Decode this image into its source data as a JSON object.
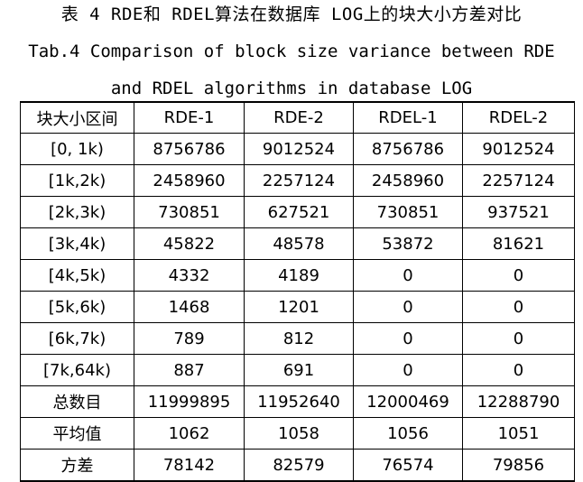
{
  "caption": {
    "cn": "表 4 RDE和 RDEL算法在数据库 LOG上的块大小方差对比",
    "en_line1": "Tab.4 Comparison of block size variance between RDE",
    "en_line2": "and RDEL algorithms in database LOG"
  },
  "table": {
    "headers": [
      "块大小区间",
      "RDE-1",
      "RDE-2",
      "RDEL-1",
      "RDEL-2"
    ],
    "rows": [
      [
        "[0, 1k)",
        "8756786",
        "9012524",
        "8756786",
        "9012524"
      ],
      [
        "[1k,2k)",
        "2458960",
        "2257124",
        "2458960",
        "2257124"
      ],
      [
        "[2k,3k)",
        "730851",
        "627521",
        "730851",
        "937521"
      ],
      [
        "[3k,4k)",
        "45822",
        "48578",
        "53872",
        "81621"
      ],
      [
        "[4k,5k)",
        "4332",
        "4189",
        "0",
        "0"
      ],
      [
        "[5k,6k)",
        "1468",
        "1201",
        "0",
        "0"
      ],
      [
        "[6k,7k)",
        "789",
        "812",
        "0",
        "0"
      ],
      [
        "[7k,64k)",
        "887",
        "691",
        "0",
        "0"
      ],
      [
        "总数目",
        "11999895",
        "11952640",
        "12000469",
        "12288790"
      ],
      [
        "平均值",
        "1062",
        "1058",
        "1056",
        "1051"
      ],
      [
        "方差",
        "78142",
        "82579",
        "76574",
        "79856"
      ]
    ]
  }
}
